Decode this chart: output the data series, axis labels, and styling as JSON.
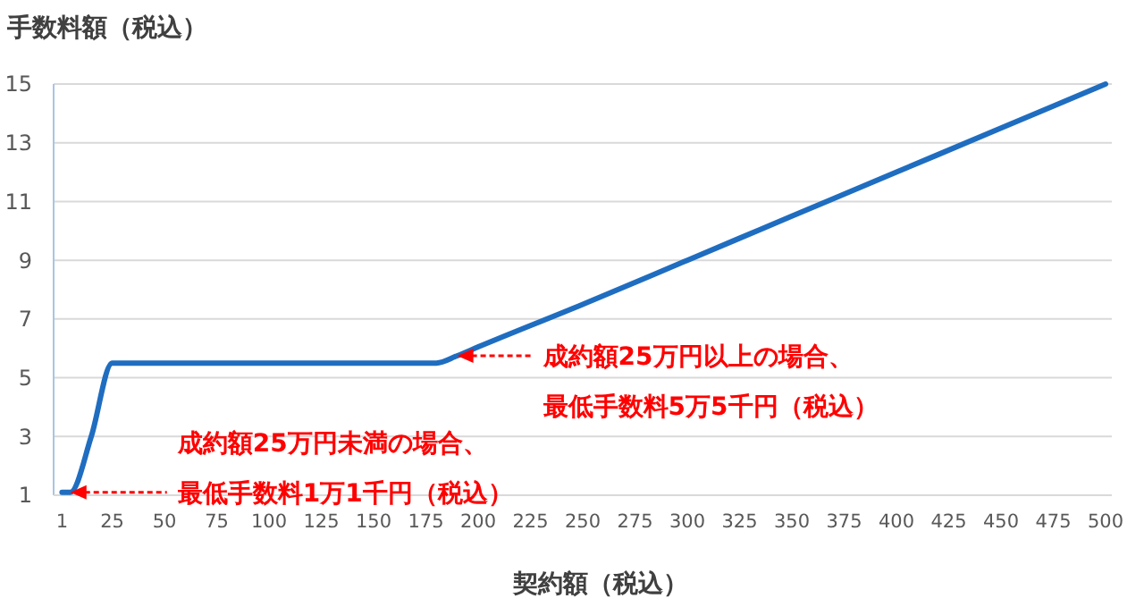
{
  "chart_data": {
    "type": "line",
    "ylabel": "手数料額（税込）",
    "xlabel": "契約額（税込）",
    "x": [
      1,
      5,
      15,
      25,
      180,
      190,
      200,
      250,
      300,
      350,
      400,
      450,
      500
    ],
    "series": [
      {
        "color": "#1f6dc0",
        "values": [
          1.1,
          1.1,
          3,
          5.5,
          5.5,
          5.75,
          6.05,
          7.5,
          9,
          10.5,
          12,
          13.5,
          15
        ]
      }
    ],
    "xlim": [
      -3,
      503
    ],
    "xticks": [
      1,
      25,
      50,
      75,
      100,
      125,
      150,
      175,
      200,
      225,
      250,
      275,
      300,
      325,
      350,
      375,
      400,
      425,
      450,
      475,
      500
    ],
    "ylim": [
      1,
      15
    ],
    "yticks": [
      1,
      3,
      5,
      7,
      9,
      11,
      13,
      15
    ],
    "grid": "y",
    "marker": "none",
    "line_style": "solid",
    "annotations": [
      {
        "text": "成約額25万円以上の場合、最低手数料5万5千円（税込）",
        "x": 190,
        "y": 5.75
      },
      {
        "text": "成約額25万円未満の場合、最低手数料1万1千円（税込）",
        "x": 5,
        "y": 1.1
      }
    ]
  }
}
